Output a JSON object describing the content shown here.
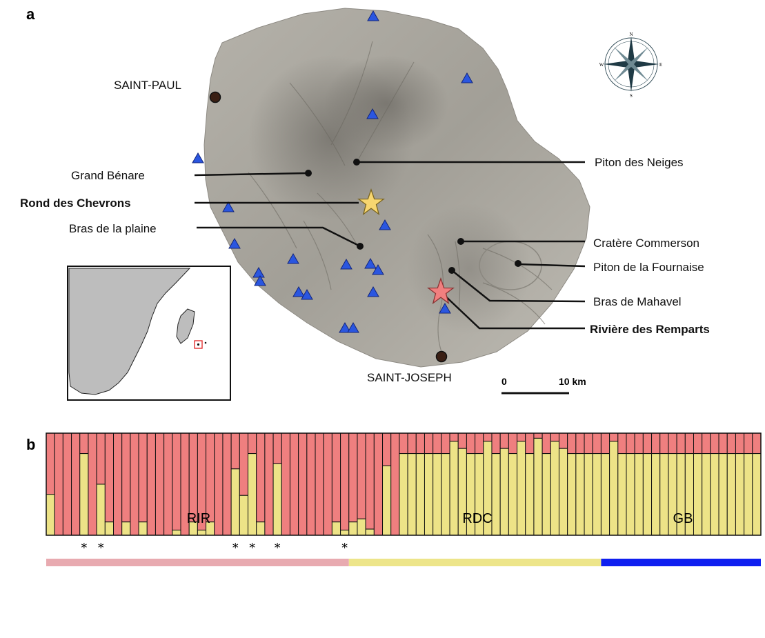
{
  "panels": {
    "a": "a",
    "b": "b"
  },
  "map": {
    "towns": [
      "SAINT-PAUL",
      "SAINT-JOSEPH"
    ],
    "places": {
      "grand_benare": "Grand Bénare",
      "rond_des_chevrons": "Rond des Chevrons",
      "bras_de_la_plaine": "Bras de la plaine",
      "piton_des_neiges": "Piton des Neiges",
      "cratere_commerson": "Cratère Commerson",
      "piton_de_la_fournaise": "Piton de la Fournaise",
      "bras_de_mahavel": "Bras de Mahavel",
      "riviere_des_remparts": "Rivière des Remparts"
    },
    "scale": {
      "zero": "0",
      "end": "10 km"
    },
    "compass_letters": [
      "N",
      "E",
      "S",
      "W"
    ],
    "colors": {
      "site_triangle": "#2a56e0",
      "star_rond": "#f7d670",
      "star_riviere": "#f17f7f",
      "town_dot": "#3a1f14",
      "relief": "#a6a39b"
    }
  },
  "chart_data": {
    "type": "bar",
    "stacked": true,
    "individuals": 85,
    "series": [
      {
        "color": "#ef7f7f"
      },
      {
        "color": "#ede387"
      }
    ],
    "yellow_fraction": [
      0.4,
      0.0,
      0.0,
      0.0,
      0.8,
      0.0,
      0.5,
      0.13,
      0.0,
      0.13,
      0.0,
      0.13,
      0.0,
      0.0,
      0.0,
      0.05,
      0.0,
      0.13,
      0.05,
      0.13,
      0.0,
      0.0,
      0.65,
      0.39,
      0.8,
      0.13,
      0.0,
      0.7,
      0.0,
      0.0,
      0.0,
      0.0,
      0.0,
      0.0,
      0.13,
      0.05,
      0.13,
      0.16,
      0.06,
      0.0,
      0.68,
      0.0,
      0.8,
      0.8,
      0.8,
      0.8,
      0.8,
      0.8,
      0.92,
      0.85,
      0.8,
      0.8,
      0.92,
      0.8,
      0.85,
      0.8,
      0.92,
      0.8,
      0.95,
      0.8,
      0.92,
      0.85,
      0.8,
      0.8,
      0.8,
      0.8,
      0.8,
      0.92,
      0.8,
      0.8,
      0.8,
      0.8,
      0.8,
      0.8,
      0.8,
      0.8,
      0.8,
      0.8,
      0.8,
      0.8,
      0.8,
      0.8,
      0.8,
      0.8,
      0.8
    ],
    "starred_individuals": [
      4,
      6,
      22,
      24,
      27,
      35
    ],
    "star_symbol": "*",
    "populations": [
      {
        "label": "RIR",
        "color": "#e8aab0",
        "start": 0,
        "end": 35
      },
      {
        "label": "RDC",
        "color": "#ede58a",
        "start": 36,
        "end": 65
      },
      {
        "label": "GB",
        "color": "#0f1ff0",
        "start": 66,
        "end": 84
      }
    ],
    "ylim": [
      0,
      1
    ]
  }
}
